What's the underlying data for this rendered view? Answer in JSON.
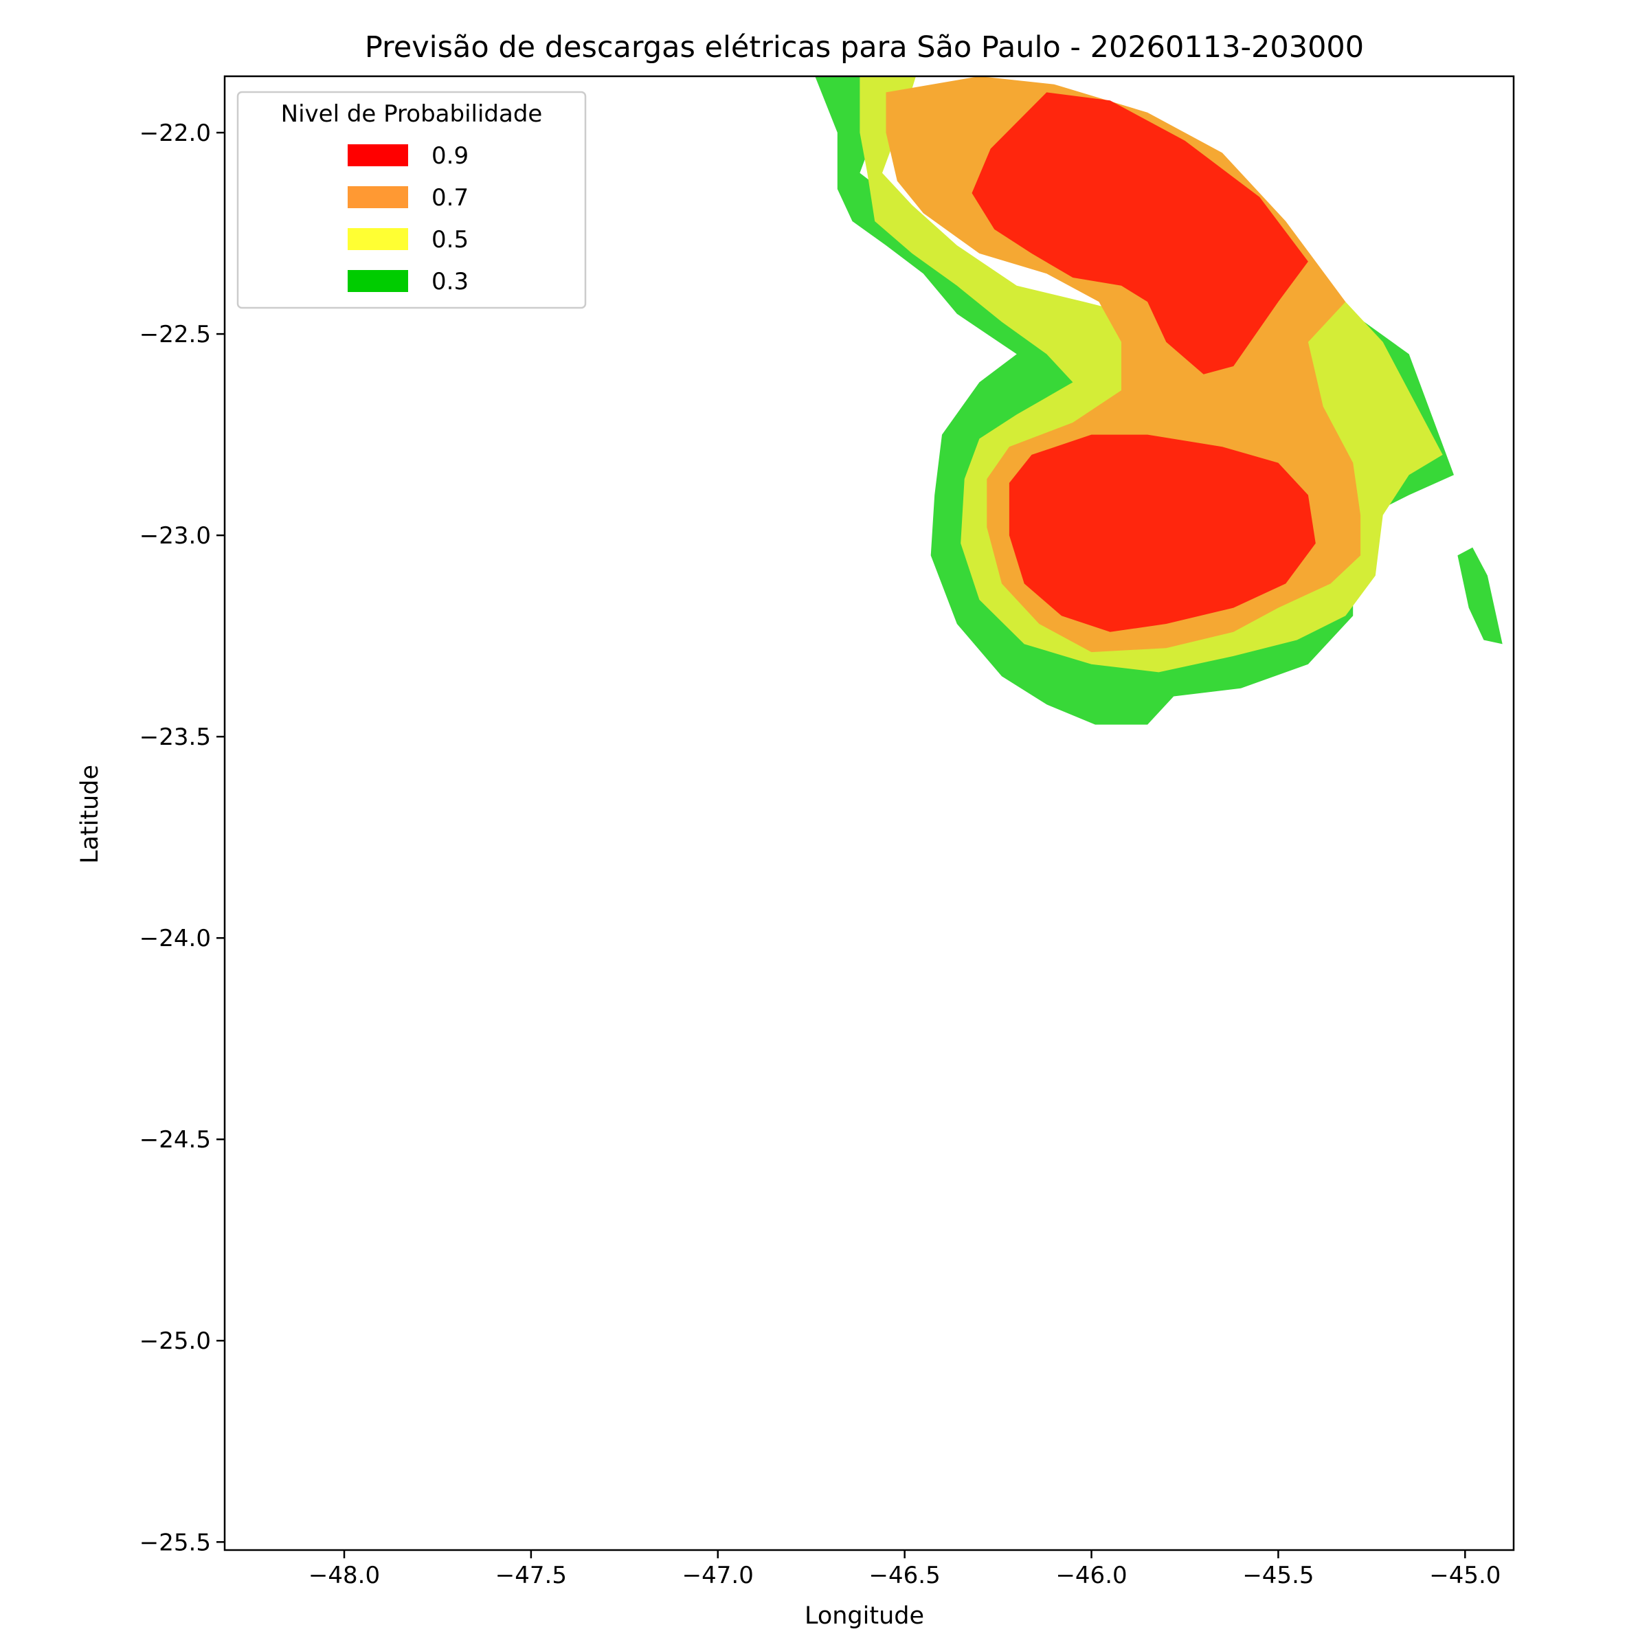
{
  "chart_data": {
    "type": "filled-contour",
    "title": "Previsão de descargas elétricas para São Paulo - 20260113-203000",
    "xlabel": "Longitude",
    "ylabel": "Latitude",
    "xlim": [
      -48.32,
      -44.87
    ],
    "ylim": [
      -25.52,
      -21.86
    ],
    "xticks": [
      -48.0,
      -47.5,
      -47.0,
      -46.5,
      -46.0,
      -45.5,
      -45.0
    ],
    "xtick_labels": [
      "−48.0",
      "−47.5",
      "−47.0",
      "−46.5",
      "−46.0",
      "−45.5",
      "−45.0"
    ],
    "yticks": [
      -22.0,
      -22.5,
      -23.0,
      -23.5,
      -24.0,
      -24.5,
      -25.0,
      -25.5
    ],
    "ytick_labels": [
      "−22.0",
      "−22.5",
      "−23.0",
      "−23.5",
      "−24.0",
      "−24.5",
      "−25.0",
      "−25.5"
    ],
    "legend": {
      "title": "Nivel de Probabilidade",
      "position": "upper-left",
      "entries": [
        {
          "label": "0.9",
          "color": "#ff0000"
        },
        {
          "label": "0.7",
          "color": "#ff9933"
        },
        {
          "label": "0.5",
          "color": "#ffff33"
        },
        {
          "label": "0.3",
          "color": "#00cc00"
        }
      ]
    },
    "levels": [
      {
        "level": 0.3,
        "color": "#38d838",
        "polygons": [
          [
            [
              -46.74,
              -21.86
            ],
            [
              -46.56,
              -21.86
            ],
            [
              -46.58,
              -22.0
            ],
            [
              -46.62,
              -22.1
            ],
            [
              -46.55,
              -22.15
            ],
            [
              -46.45,
              -22.25
            ],
            [
              -46.3,
              -22.38
            ],
            [
              -46.2,
              -22.45
            ],
            [
              -46.08,
              -22.48
            ],
            [
              -45.99,
              -22.56
            ],
            [
              -45.8,
              -22.5
            ],
            [
              -45.6,
              -22.45
            ],
            [
              -45.48,
              -22.42
            ],
            [
              -45.3,
              -22.45
            ],
            [
              -45.15,
              -22.55
            ],
            [
              -45.03,
              -22.85
            ],
            [
              -45.15,
              -22.9
            ],
            [
              -45.3,
              -22.97
            ],
            [
              -45.3,
              -23.2
            ],
            [
              -45.42,
              -23.32
            ],
            [
              -45.6,
              -23.38
            ],
            [
              -45.78,
              -23.4
            ],
            [
              -45.85,
              -23.47
            ],
            [
              -45.99,
              -23.47
            ],
            [
              -46.12,
              -23.42
            ],
            [
              -46.24,
              -23.35
            ],
            [
              -46.36,
              -23.22
            ],
            [
              -46.43,
              -23.05
            ],
            [
              -46.42,
              -22.9
            ],
            [
              -46.4,
              -22.75
            ],
            [
              -46.3,
              -22.62
            ],
            [
              -46.2,
              -22.55
            ],
            [
              -46.28,
              -22.5
            ],
            [
              -46.36,
              -22.45
            ],
            [
              -46.45,
              -22.35
            ],
            [
              -46.55,
              -22.28
            ],
            [
              -46.64,
              -22.22
            ],
            [
              -46.68,
              -22.14
            ],
            [
              -46.68,
              -22.0
            ]
          ],
          [
            [
              -45.02,
              -23.05
            ],
            [
              -44.98,
              -23.03
            ],
            [
              -44.94,
              -23.1
            ],
            [
              -44.9,
              -23.27
            ],
            [
              -44.95,
              -23.26
            ],
            [
              -44.99,
              -23.18
            ]
          ]
        ]
      },
      {
        "level": 0.5,
        "color": "#d4ed37",
        "polygons": [
          [
            [
              -46.62,
              -21.86
            ],
            [
              -46.47,
              -21.86
            ],
            [
              -46.5,
              -21.95
            ],
            [
              -46.56,
              -22.1
            ],
            [
              -46.48,
              -22.18
            ],
            [
              -46.36,
              -22.28
            ],
            [
              -46.2,
              -22.38
            ],
            [
              -46.02,
              -22.42
            ],
            [
              -45.85,
              -22.46
            ],
            [
              -45.68,
              -22.42
            ],
            [
              -45.48,
              -22.38
            ],
            [
              -45.32,
              -22.42
            ],
            [
              -45.22,
              -22.52
            ],
            [
              -45.06,
              -22.8
            ],
            [
              -45.15,
              -22.85
            ],
            [
              -45.22,
              -22.95
            ],
            [
              -45.24,
              -23.1
            ],
            [
              -45.32,
              -23.2
            ],
            [
              -45.45,
              -23.26
            ],
            [
              -45.62,
              -23.3
            ],
            [
              -45.82,
              -23.34
            ],
            [
              -46.0,
              -23.32
            ],
            [
              -46.18,
              -23.27
            ],
            [
              -46.3,
              -23.16
            ],
            [
              -46.35,
              -23.02
            ],
            [
              -46.34,
              -22.86
            ],
            [
              -46.3,
              -22.76
            ],
            [
              -46.2,
              -22.7
            ],
            [
              -46.05,
              -22.62
            ],
            [
              -46.12,
              -22.55
            ],
            [
              -46.24,
              -22.47
            ],
            [
              -46.36,
              -22.38
            ],
            [
              -46.48,
              -22.3
            ],
            [
              -46.58,
              -22.22
            ],
            [
              -46.6,
              -22.1
            ],
            [
              -46.62,
              -22.0
            ]
          ]
        ]
      },
      {
        "level": 0.7,
        "color": "#f5a833",
        "polygons": [
          [
            [
              -46.55,
              -21.9
            ],
            [
              -46.3,
              -21.86
            ],
            [
              -46.1,
              -21.88
            ],
            [
              -45.85,
              -21.95
            ],
            [
              -45.65,
              -22.05
            ],
            [
              -45.48,
              -22.22
            ],
            [
              -45.32,
              -22.42
            ],
            [
              -45.42,
              -22.52
            ],
            [
              -45.38,
              -22.68
            ],
            [
              -45.3,
              -22.82
            ],
            [
              -45.28,
              -22.95
            ],
            [
              -45.28,
              -23.05
            ],
            [
              -45.36,
              -23.12
            ],
            [
              -45.5,
              -23.18
            ],
            [
              -45.62,
              -23.24
            ],
            [
              -45.8,
              -23.28
            ],
            [
              -46.0,
              -23.29
            ],
            [
              -46.14,
              -23.22
            ],
            [
              -46.24,
              -23.12
            ],
            [
              -46.28,
              -22.98
            ],
            [
              -46.28,
              -22.86
            ],
            [
              -46.22,
              -22.78
            ],
            [
              -46.05,
              -22.72
            ],
            [
              -45.92,
              -22.64
            ],
            [
              -45.92,
              -22.52
            ],
            [
              -45.98,
              -22.42
            ],
            [
              -46.12,
              -22.35
            ],
            [
              -46.3,
              -22.3
            ],
            [
              -46.45,
              -22.2
            ],
            [
              -46.52,
              -22.12
            ],
            [
              -46.55,
              -22.0
            ]
          ]
        ]
      },
      {
        "level": 0.9,
        "color": "#ff260d",
        "polygons": [
          [
            [
              -46.27,
              -22.04
            ],
            [
              -46.12,
              -21.9
            ],
            [
              -45.95,
              -21.92
            ],
            [
              -45.75,
              -22.02
            ],
            [
              -45.55,
              -22.16
            ],
            [
              -45.42,
              -22.32
            ],
            [
              -45.5,
              -22.42
            ],
            [
              -45.62,
              -22.58
            ],
            [
              -45.7,
              -22.6
            ],
            [
              -45.8,
              -22.52
            ],
            [
              -45.85,
              -22.42
            ],
            [
              -45.92,
              -22.38
            ],
            [
              -46.05,
              -22.36
            ],
            [
              -46.16,
              -22.3
            ],
            [
              -46.26,
              -22.24
            ],
            [
              -46.32,
              -22.15
            ]
          ],
          [
            [
              -46.22,
              -22.87
            ],
            [
              -46.16,
              -22.8
            ],
            [
              -46.0,
              -22.75
            ],
            [
              -45.85,
              -22.75
            ],
            [
              -45.65,
              -22.78
            ],
            [
              -45.5,
              -22.82
            ],
            [
              -45.42,
              -22.9
            ],
            [
              -45.4,
              -23.02
            ],
            [
              -45.48,
              -23.12
            ],
            [
              -45.62,
              -23.18
            ],
            [
              -45.8,
              -23.22
            ],
            [
              -45.95,
              -23.24
            ],
            [
              -46.08,
              -23.2
            ],
            [
              -46.18,
              -23.12
            ],
            [
              -46.22,
              -23.0
            ]
          ]
        ]
      }
    ]
  }
}
